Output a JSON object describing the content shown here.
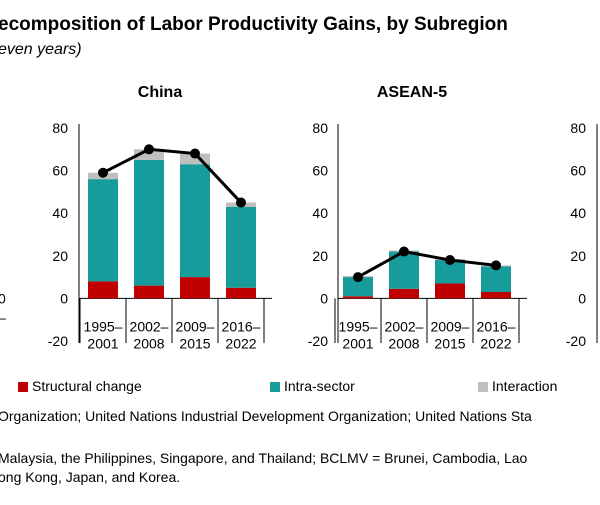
{
  "header": {
    "title": "ecomposition of Labor Productivity Gains, by Subregion",
    "subtitle": "even years)"
  },
  "colors": {
    "structural": "#c00000",
    "intra": "#179c9c",
    "interaction": "#bfbfbf",
    "line": "#000000"
  },
  "chart_data": [
    {
      "type": "bar",
      "title": "China",
      "categories": [
        "1995–\n2001",
        "2002–\n2008",
        "2009–\n2015",
        "2016–\n2022"
      ],
      "ylim": [
        -20,
        80
      ],
      "yticks": [
        80,
        60,
        40,
        20,
        0,
        -20
      ],
      "stacked": true,
      "series": [
        {
          "name": "Structural change",
          "values": [
            8,
            6,
            10,
            5
          ]
        },
        {
          "name": "Intra-sector",
          "values": [
            48,
            59,
            53,
            38
          ]
        },
        {
          "name": "Interaction",
          "values": [
            3,
            5,
            5,
            2
          ]
        }
      ],
      "total_line": [
        59,
        70,
        68,
        45
      ]
    },
    {
      "type": "bar",
      "title": "ASEAN-5",
      "categories": [
        "1995–\n2001",
        "2002–\n2008",
        "2009–\n2015",
        "2016–\n2022"
      ],
      "ylim": [
        -20,
        80
      ],
      "yticks": [
        80,
        60,
        40,
        20,
        0,
        -20
      ],
      "stacked": true,
      "series": [
        {
          "name": "Structural change",
          "values": [
            1,
            4.5,
            7,
            3
          ]
        },
        {
          "name": "Intra-sector",
          "values": [
            9,
            17.5,
            11,
            12
          ]
        },
        {
          "name": "Interaction",
          "values": [
            0.5,
            0.5,
            0.5,
            0.5
          ]
        }
      ],
      "total_line": [
        10,
        22,
        18,
        15.5
      ]
    }
  ],
  "partial_panels": {
    "right_axis_ticks": [
      80,
      60,
      40,
      20,
      0,
      -20
    ],
    "left_axis_ticks": [
      "0",
      "–"
    ]
  },
  "legend": {
    "structural": "Structural change",
    "intra": "Intra-sector",
    "interaction": "Interaction"
  },
  "notes": {
    "source": "Organization; United Nations Industrial Development Organization; United Nations Sta",
    "note_line1": "Malaysia, the Philippines, Singapore, and Thailand; BCLMV = Brunei, Cambodia, Lao",
    "note_line2": "ong Kong, Japan, and Korea."
  }
}
